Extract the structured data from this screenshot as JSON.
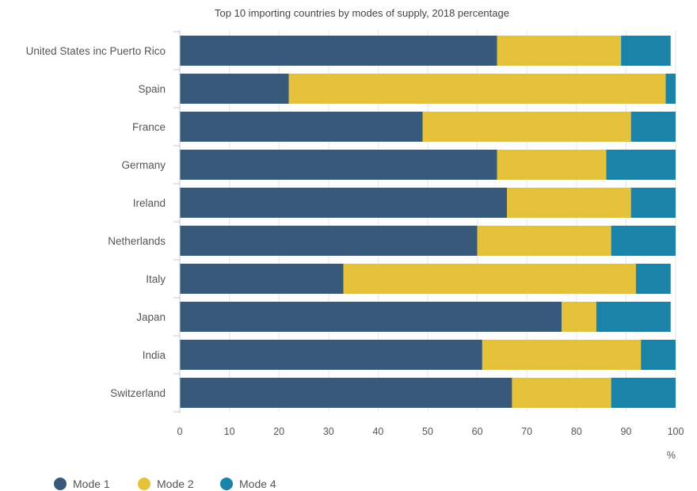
{
  "chart_data": {
    "type": "bar",
    "orientation": "horizontal",
    "stacked": true,
    "title": "Top 10 importing countries by modes of supply, 2018 percentage",
    "xlabel": "%",
    "ylabel": "",
    "xlim": [
      0,
      100
    ],
    "xticks": [
      0,
      10,
      20,
      30,
      40,
      50,
      60,
      70,
      80,
      90,
      100
    ],
    "grid": true,
    "legend_position": "bottom-left",
    "categories": [
      "United States inc Puerto Rico",
      "Spain",
      "France",
      "Germany",
      "Ireland",
      "Netherlands",
      "Italy",
      "Japan",
      "India",
      "Switzerland"
    ],
    "series": [
      {
        "name": "Mode 1",
        "color": "#375a7b",
        "values": [
          64,
          22,
          49,
          64,
          66,
          60,
          33,
          77,
          61,
          67
        ]
      },
      {
        "name": "Mode 2",
        "color": "#e5c23a",
        "values": [
          25,
          76,
          42,
          22,
          25,
          27,
          59,
          7,
          32,
          20
        ]
      },
      {
        "name": "Mode 4",
        "color": "#1b82a8",
        "values": [
          10,
          2,
          9,
          14,
          9,
          13,
          7,
          15,
          7,
          13
        ]
      }
    ]
  }
}
